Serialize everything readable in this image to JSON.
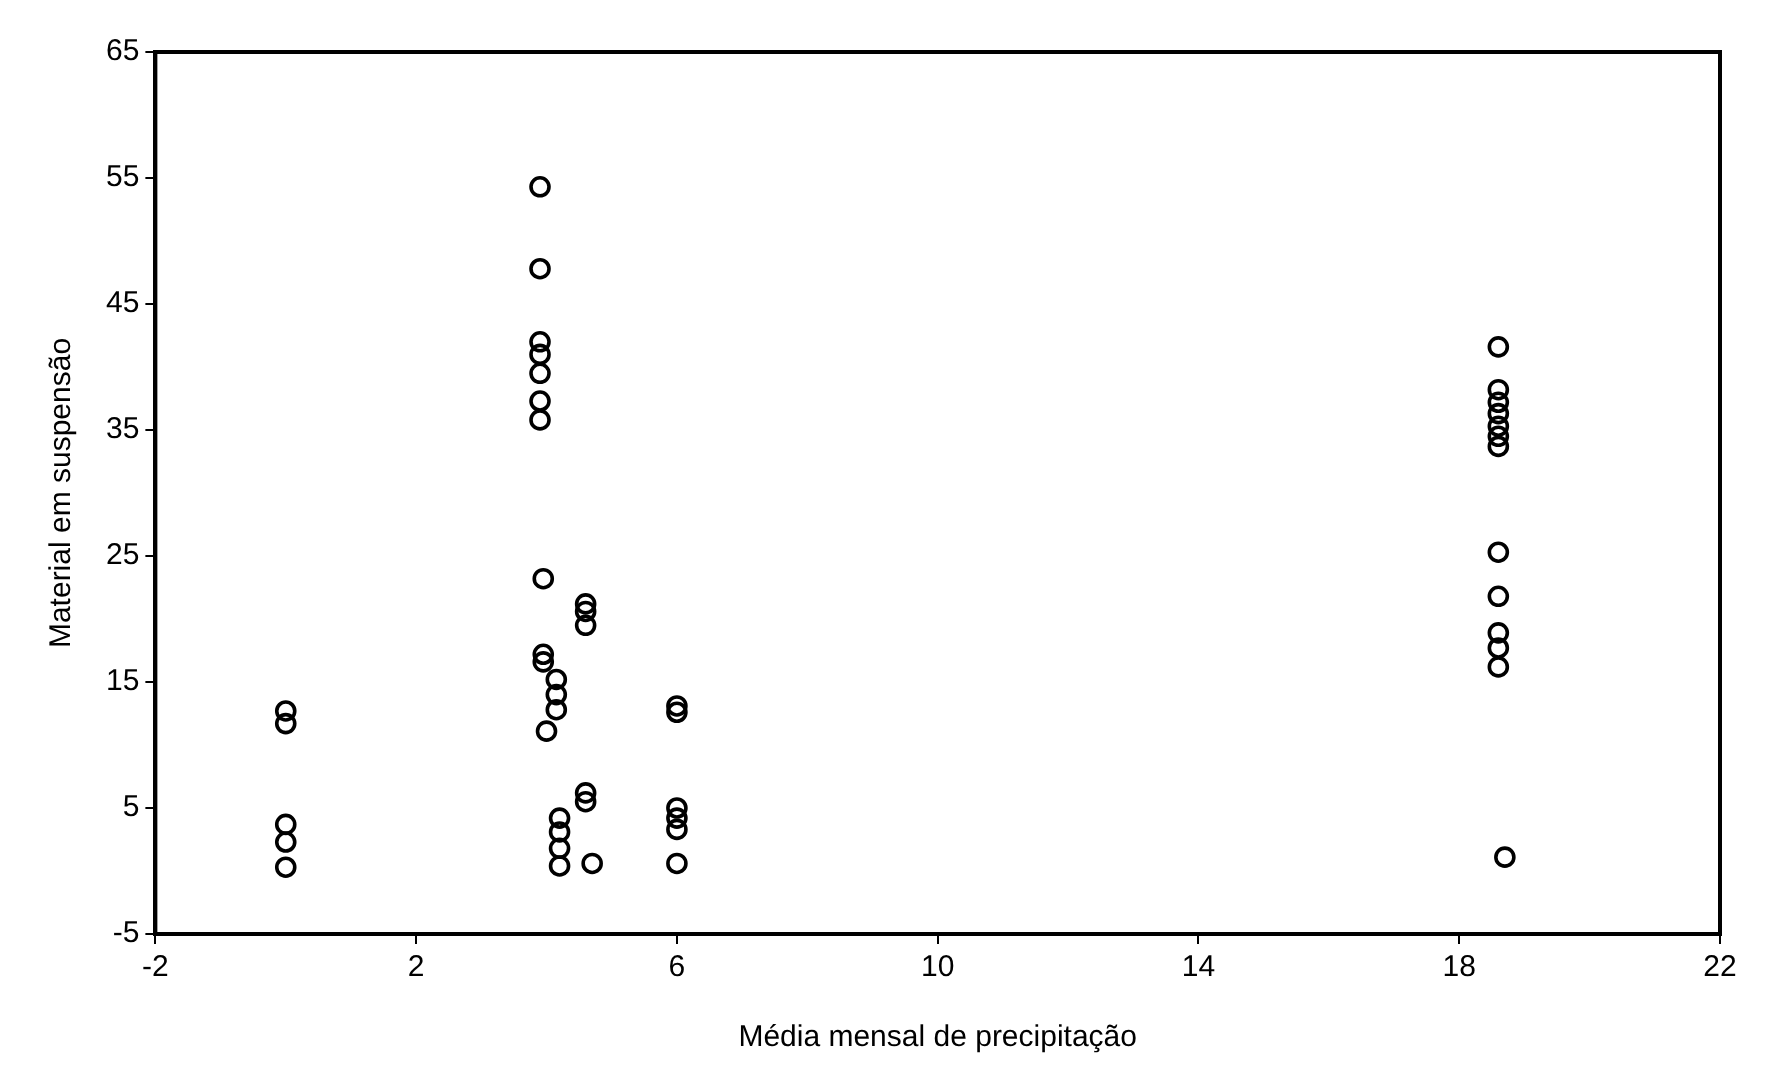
{
  "chart_data": {
    "type": "scatter",
    "xlabel": "Média mensal de precipitação",
    "ylabel": "Material em suspensão",
    "x": [
      0,
      0,
      0,
      0,
      0,
      3.9,
      3.9,
      3.9,
      3.9,
      3.9,
      3.9,
      3.9,
      3.95,
      3.95,
      3.95,
      4.15,
      4.15,
      4.15,
      4,
      4.2,
      4.2,
      4.2,
      4.2,
      4.6,
      4.6,
      4.6,
      4.6,
      4.6,
      4.7,
      6,
      6,
      6,
      6,
      6,
      6,
      18.6,
      18.6,
      18.6,
      18.6,
      18.6,
      18.6,
      18.6,
      18.6,
      18.6,
      18.6,
      18.6,
      18.6,
      18.7
    ],
    "values": [
      12.7,
      11.7,
      3.7,
      2.3,
      0.3,
      54.3,
      47.8,
      42,
      41,
      39.5,
      37.3,
      35.8,
      23.2,
      17.2,
      16.6,
      15.2,
      14,
      12.8,
      11.1,
      4.2,
      3.1,
      1.8,
      0.4,
      21.2,
      20.6,
      19.5,
      6.2,
      5.5,
      0.6,
      13.1,
      12.6,
      5,
      4.2,
      3.3,
      0.6,
      41.6,
      38.2,
      37.2,
      36.3,
      35.3,
      34.5,
      33.7,
      25.3,
      21.8,
      18.9,
      17.7,
      16.2,
      1.1
    ],
    "color": "#000000",
    "marker": "circle",
    "xlim": [
      -2,
      22
    ],
    "xticks": [
      -2,
      2,
      6,
      10,
      14,
      18,
      22
    ],
    "ylim": [
      -5,
      65
    ],
    "yticks": [
      -5,
      5,
      15,
      25,
      35,
      45,
      55,
      65
    ],
    "grid": false,
    "legend": false
  }
}
